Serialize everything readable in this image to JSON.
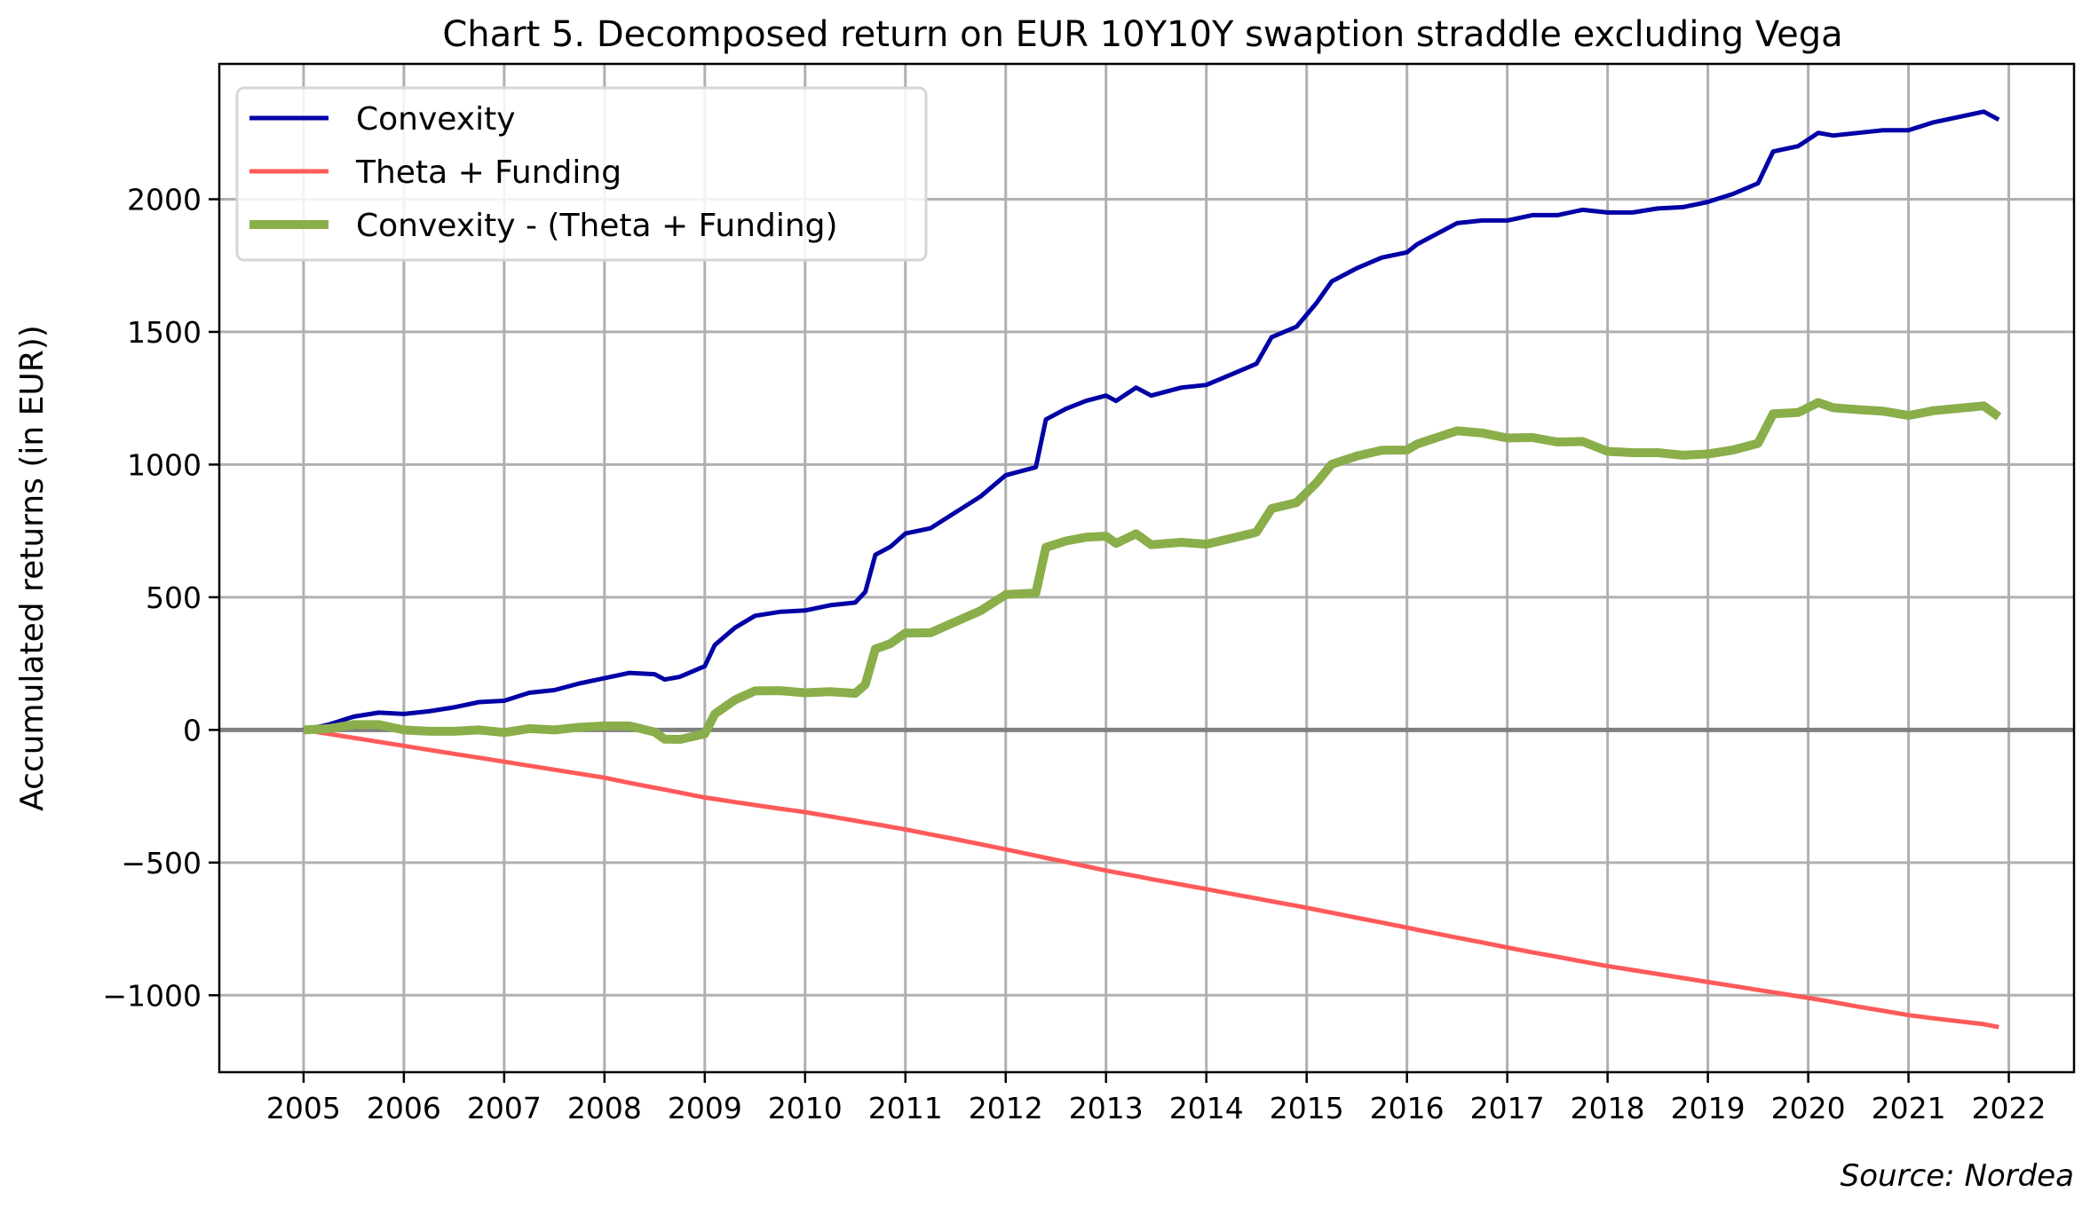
{
  "chart_data": {
    "type": "line",
    "title": "Chart 5. Decomposed return on EUR 10Y10Y swaption straddle excluding Vega",
    "xlabel": "",
    "ylabel": "Accumulated returns (in EUR))",
    "source": "Source: Nordea",
    "xlim": [
      2004.16,
      2022.65
    ],
    "ylim": [
      -1290,
      2510
    ],
    "grid": true,
    "legend_position": "top-left",
    "xticks": [
      2005,
      2006,
      2007,
      2008,
      2009,
      2010,
      2011,
      2012,
      2013,
      2014,
      2015,
      2016,
      2017,
      2018,
      2019,
      2020,
      2021,
      2022
    ],
    "xtick_labels": [
      "2005",
      "2006",
      "2007",
      "2008",
      "2009",
      "2010",
      "2011",
      "2012",
      "2013",
      "2014",
      "2015",
      "2016",
      "2017",
      "2018",
      "2019",
      "2020",
      "2021",
      "2022"
    ],
    "yticks": [
      -1000,
      -500,
      0,
      500,
      1000,
      1500,
      2000
    ],
    "ytick_labels": [
      "−1000",
      "−500",
      "0",
      "500",
      "1000",
      "1500",
      "2000"
    ],
    "x": [
      2005.0,
      2005.25,
      2005.5,
      2005.75,
      2006.0,
      2006.25,
      2006.5,
      2006.75,
      2007.0,
      2007.25,
      2007.5,
      2007.75,
      2008.0,
      2008.25,
      2008.5,
      2008.6,
      2008.75,
      2009.0,
      2009.1,
      2009.3,
      2009.5,
      2009.75,
      2010.0,
      2010.25,
      2010.5,
      2010.6,
      2010.7,
      2010.85,
      2011.0,
      2011.25,
      2011.5,
      2011.75,
      2012.0,
      2012.3,
      2012.4,
      2012.6,
      2012.8,
      2013.0,
      2013.1,
      2013.3,
      2013.45,
      2013.75,
      2014.0,
      2014.25,
      2014.5,
      2014.65,
      2014.9,
      2015.1,
      2015.25,
      2015.5,
      2015.75,
      2016.0,
      2016.1,
      2016.25,
      2016.5,
      2016.75,
      2017.0,
      2017.25,
      2017.5,
      2017.75,
      2018.0,
      2018.25,
      2018.5,
      2018.75,
      2019.0,
      2019.25,
      2019.5,
      2019.65,
      2019.9,
      2020.1,
      2020.25,
      2020.5,
      2020.75,
      2021.0,
      2021.25,
      2021.5,
      2021.75,
      2021.9
    ],
    "series": [
      {
        "name": "Convexity",
        "color": "#0000a6",
        "width": 5,
        "values": [
          0,
          20,
          50,
          65,
          60,
          70,
          85,
          105,
          110,
          140,
          150,
          175,
          195,
          215,
          210,
          190,
          200,
          240,
          320,
          385,
          430,
          445,
          450,
          470,
          480,
          520,
          660,
          690,
          740,
          760,
          820,
          880,
          960,
          990,
          1170,
          1210,
          1240,
          1260,
          1240,
          1290,
          1260,
          1290,
          1300,
          1340,
          1380,
          1480,
          1520,
          1610,
          1690,
          1740,
          1780,
          1800,
          1830,
          1860,
          1910,
          1920,
          1920,
          1940,
          1940,
          1960,
          1950,
          1950,
          1965,
          1970,
          1990,
          2020,
          2060,
          2180,
          2200,
          2250,
          2240,
          2250,
          2260,
          2260,
          2290,
          2310,
          2330,
          2300
        ]
      },
      {
        "name": "Theta + Funding",
        "color": "#ff5a5a",
        "width": 5,
        "values": [
          0,
          -15,
          -30,
          -45,
          -60,
          -75,
          -90,
          -105,
          -120,
          -135,
          -150,
          -165,
          -180,
          -200,
          -218,
          -225,
          -236,
          -255,
          -260,
          -272,
          -283,
          -297,
          -310,
          -326,
          -342,
          -349,
          -355,
          -365,
          -375,
          -394,
          -412,
          -431,
          -450,
          -474,
          -482,
          -498,
          -514,
          -530,
          -537,
          -551,
          -562,
          -583,
          -600,
          -618,
          -635,
          -646,
          -663,
          -678,
          -689,
          -708,
          -726,
          -745,
          -753,
          -764,
          -783,
          -801,
          -820,
          -838,
          -855,
          -873,
          -890,
          -905,
          -920,
          -935,
          -950,
          -965,
          -980,
          -989,
          -1004,
          -1016,
          -1026,
          -1043,
          -1059,
          -1075,
          -1087,
          -1098,
          -1109,
          -1120
        ]
      },
      {
        "name": "Convexity - (Theta + Funding)",
        "color": "#8aae4a",
        "width": 10,
        "values": [
          0,
          5,
          20,
          20,
          0,
          -5,
          -5,
          0,
          -10,
          5,
          0,
          10,
          15,
          15,
          -8,
          -35,
          -36,
          -15,
          60,
          113,
          147,
          148,
          140,
          144,
          138,
          171,
          305,
          325,
          365,
          366,
          408,
          449,
          510,
          516,
          688,
          712,
          726,
          730,
          703,
          739,
          698,
          707,
          700,
          722,
          745,
          834,
          857,
          932,
          1001,
          1032,
          1054,
          1055,
          1077,
          1096,
          1127,
          1119,
          1100,
          1102,
          1085,
          1087,
          1050,
          1045,
          1045,
          1035,
          1040,
          1055,
          1080,
          1191,
          1196,
          1234,
          1214,
          1207,
          1201,
          1185,
          1203,
          1212,
          1221,
          1180
        ]
      }
    ]
  }
}
